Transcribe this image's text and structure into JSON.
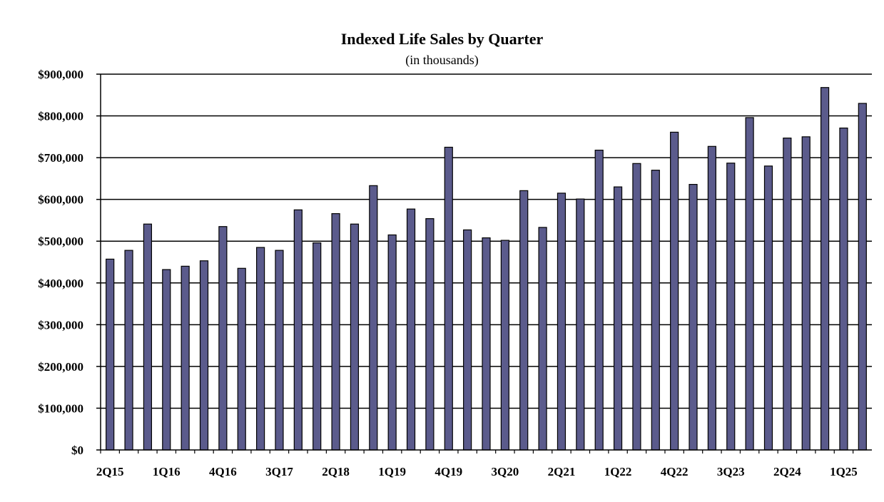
{
  "chart_data": {
    "type": "bar",
    "title": "Indexed Life Sales by Quarter",
    "subtitle": "(in thousands)",
    "xlabel": "",
    "ylabel": "",
    "ylim": [
      0,
      900000
    ],
    "yticks": [
      0,
      100000,
      200000,
      300000,
      400000,
      500000,
      600000,
      700000,
      800000,
      900000
    ],
    "ytick_labels": [
      "$0",
      "$100,000",
      "$200,000",
      "$300,000",
      "$400,000",
      "$500,000",
      "$600,000",
      "$700,000",
      "$800,000",
      "$900,000"
    ],
    "grid": true,
    "bar_color": "#5b5b8c",
    "categories": [
      "2Q15",
      "3Q15",
      "4Q15",
      "1Q16",
      "2Q16",
      "3Q16",
      "4Q16",
      "1Q17",
      "2Q17",
      "3Q17",
      "4Q17",
      "1Q18",
      "2Q18",
      "3Q18",
      "4Q18",
      "1Q19",
      "2Q19",
      "3Q19",
      "4Q19",
      "1Q20",
      "2Q20",
      "3Q20",
      "4Q20",
      "1Q21",
      "2Q21",
      "3Q21",
      "4Q21",
      "1Q22",
      "2Q22",
      "3Q22",
      "4Q22",
      "1Q23",
      "2Q23",
      "3Q23",
      "4Q23",
      "1Q24",
      "2Q24",
      "3Q24",
      "4Q24",
      "1Q25",
      "2Q25"
    ],
    "shown_tick_labels": [
      "2Q15",
      "1Q16",
      "4Q16",
      "3Q17",
      "2Q18",
      "1Q19",
      "4Q19",
      "3Q20",
      "2Q21",
      "1Q22",
      "4Q22",
      "3Q23",
      "2Q24",
      "1Q25"
    ],
    "values": [
      457000,
      478000,
      541000,
      432000,
      440000,
      453000,
      535000,
      435000,
      485000,
      478000,
      575000,
      496000,
      566000,
      541000,
      633000,
      515000,
      577000,
      554000,
      725000,
      527000,
      508000,
      502000,
      621000,
      533000,
      615000,
      601000,
      718000,
      630000,
      686000,
      670000,
      761000,
      636000,
      727000,
      687000,
      796000,
      680000,
      747000,
      750000,
      868000,
      771000,
      830000
    ]
  }
}
